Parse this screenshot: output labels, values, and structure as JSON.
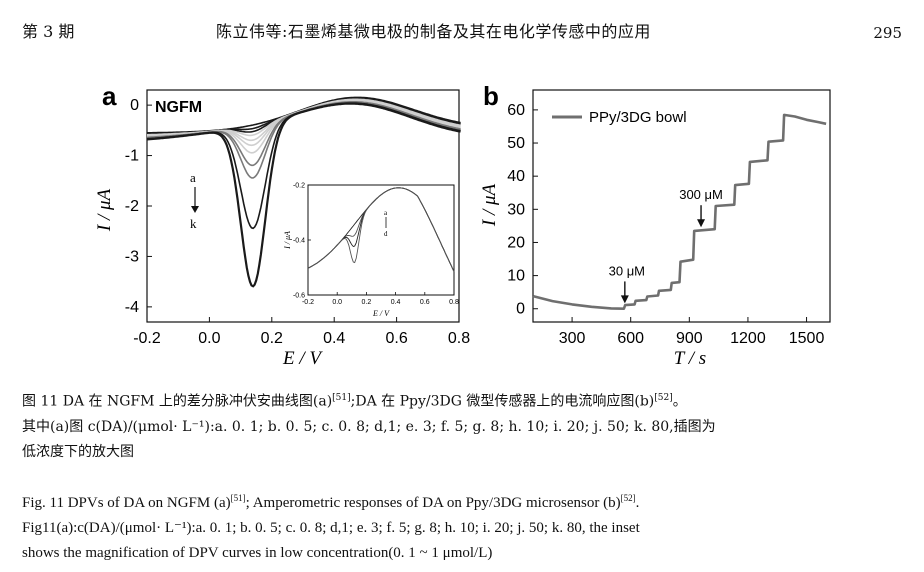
{
  "header": {
    "issue": "第 3 期",
    "title": "陈立伟等:石墨烯基微电极的制备及其在电化学传感中的应用",
    "page_number": "295"
  },
  "chart_data": [
    {
      "panel": "a",
      "type": "line",
      "title": "NGFM",
      "xlabel": "E / V",
      "ylabel": "I / μA",
      "xlim": [
        -0.2,
        0.8
      ],
      "ylim": [
        -4.3,
        0.3
      ],
      "xticks": [
        "-0.2",
        "0.0",
        "0.2",
        "0.4",
        "0.6",
        "0.8"
      ],
      "yticks": [
        "0",
        "-1",
        "-2",
        "-3",
        "-4"
      ],
      "arrow_annotation": {
        "start": "a",
        "end": "k"
      },
      "series": [
        {
          "name": "a",
          "peak": -0.55
        },
        {
          "name": "b",
          "peak": -0.62
        },
        {
          "name": "c",
          "peak": -0.68
        },
        {
          "name": "d",
          "peak": -0.75
        },
        {
          "name": "e",
          "peak": -0.85
        },
        {
          "name": "f",
          "peak": -0.95
        },
        {
          "name": "g",
          "peak": -1.1
        },
        {
          "name": "h",
          "peak": -1.35
        },
        {
          "name": "i",
          "peak": -1.6
        },
        {
          "name": "j",
          "peak": -2.6
        },
        {
          "name": "k",
          "peak": -3.75
        }
      ],
      "peak_potential": 0.14,
      "inset": {
        "xlabel": "E / V",
        "ylabel": "I / μA",
        "xlim": [
          -0.2,
          0.8
        ],
        "ylim": [
          -0.6,
          -0.2
        ],
        "xticks": [
          "-0.2",
          "0.0",
          "0.2",
          "0.4",
          "0.6",
          "0.8"
        ],
        "yticks": [
          "-0.2",
          "-0.4",
          "-0.6"
        ],
        "arrow_annotation": {
          "start": "a",
          "end": "d"
        },
        "series": [
          {
            "name": "a",
            "dip": 0.0
          },
          {
            "name": "b",
            "dip": 0.01
          },
          {
            "name": "c",
            "dip": 0.02
          },
          {
            "name": "d",
            "dip": 0.035
          }
        ]
      }
    },
    {
      "panel": "b",
      "type": "line",
      "title": "",
      "legend": "PPy/3DG bowl",
      "xlabel": "T / s",
      "ylabel": "I / μA",
      "xlim": [
        100,
        1620
      ],
      "ylim": [
        -4,
        66
      ],
      "xticks": [
        "300",
        "600",
        "900",
        "1200",
        "1500"
      ],
      "yticks": [
        "0",
        "10",
        "20",
        "30",
        "40",
        "50",
        "60"
      ],
      "annotations": [
        {
          "text": "30 μM",
          "x": 570,
          "y": 1
        },
        {
          "text": "300 μM",
          "x": 960,
          "y": 24
        }
      ],
      "points": [
        [
          100,
          3.8
        ],
        [
          200,
          2.3
        ],
        [
          300,
          1.3
        ],
        [
          400,
          0.6
        ],
        [
          500,
          0.1
        ],
        [
          565,
          0.0
        ],
        [
          572,
          1.1
        ],
        [
          620,
          1.3
        ],
        [
          625,
          2.4
        ],
        [
          680,
          2.6
        ],
        [
          685,
          3.7
        ],
        [
          740,
          4.0
        ],
        [
          745,
          5.4
        ],
        [
          805,
          5.7
        ],
        [
          810,
          7.8
        ],
        [
          850,
          8.0
        ],
        [
          855,
          14.2
        ],
        [
          920,
          14.8
        ],
        [
          925,
          23.5
        ],
        [
          1030,
          24.0
        ],
        [
          1035,
          31.0
        ],
        [
          1130,
          31.4
        ],
        [
          1135,
          37.3
        ],
        [
          1205,
          37.7
        ],
        [
          1210,
          44.3
        ],
        [
          1300,
          44.8
        ],
        [
          1305,
          50.4
        ],
        [
          1380,
          50.8
        ],
        [
          1385,
          58.5
        ],
        [
          1440,
          58.0
        ],
        [
          1500,
          57.0
        ],
        [
          1560,
          56.3
        ],
        [
          1600,
          55.8
        ]
      ]
    }
  ],
  "caption": {
    "cn_line1": "图 11    DA 在 NGFM 上的差分脉冲伏安曲线图(a)",
    "cn_ref1": "[51]",
    "cn_line1b": ";DA 在 Ppy/3DG 微型传感器上的电流响应图(b)",
    "cn_ref2": "[52]",
    "cn_line1c": "。",
    "cn_line2": "其中(a)图 c(DA)/(μmol· L⁻¹):a. 0. 1; b. 0. 5; c. 0. 8; d,1; e. 3; f. 5; g. 8; h. 10; i. 20; j. 50; k. 80,插图为",
    "cn_line3": "低浓度下的放大图",
    "en_line1a": "Fig. 11    DPVs of DA on NGFM (a)",
    "en_ref1": "[51]",
    "en_line1b": "; Amperometric responses of DA on Ppy/3DG microsensor (b)",
    "en_ref2": "[52]",
    "en_line1c": ".",
    "en_line2": "Fig11(a):c(DA)/(μmol· L⁻¹):a. 0. 1; b. 0. 5; c. 0. 8; d,1; e. 3; f. 5; g. 8; h. 10; i. 20; j. 50; k. 80, the inset",
    "en_line3": "shows the magnification of DPV curves in low concentration(0. 1 ~ 1 μmol/L)"
  },
  "colors": {
    "ink": "#111111",
    "curve_dark": "#1a1a1a",
    "curve_gray": "#7a7a7a",
    "curve_light": "#cfcfcf"
  }
}
